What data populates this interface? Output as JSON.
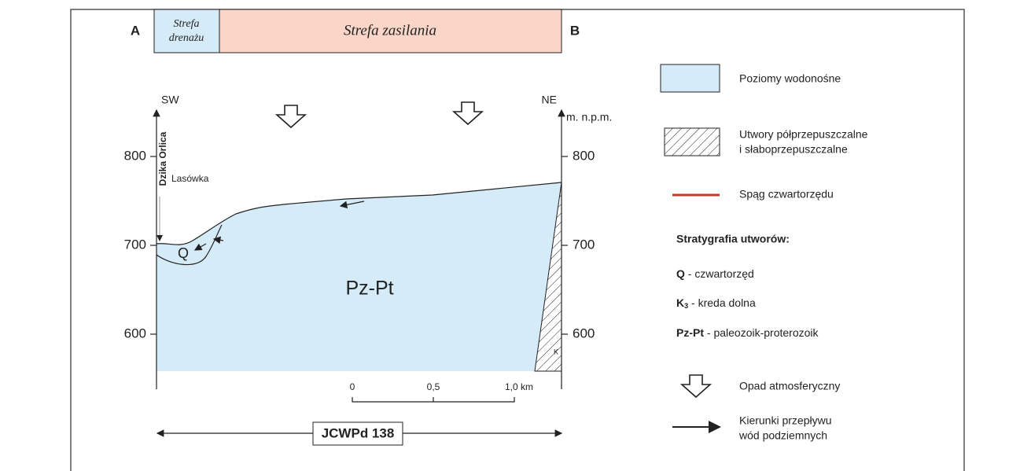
{
  "header": {
    "left_marker": "A",
    "right_marker": "B",
    "zone_drainage": [
      "Strefa",
      "drenażu"
    ],
    "zone_recharge": "Strefa zasilania"
  },
  "section": {
    "left_direction": "SW",
    "right_direction": "NE",
    "unit": "m. n.p.m.",
    "left_ticks": [
      "800",
      "700",
      "600"
    ],
    "right_ticks": [
      "800",
      "700",
      "600"
    ],
    "river": "Dzika Orlica",
    "stream": "Lasówka",
    "unit_q": "Q",
    "unit_pzpt": "Pz-Pt",
    "unit_k": "K"
  },
  "scale": {
    "labels": [
      "0",
      "0,5",
      "1,0 km"
    ]
  },
  "groundwater_body": "JCWPd 138",
  "legend": {
    "aquifers": "Poziomy wodonośne",
    "semi_permeable": [
      "Utwory półprzepuszczalne",
      "i słaboprzepuszczalne"
    ],
    "quaternary_base": "Spąg czwartorzędu",
    "stratigraphy_title": "Stratygrafia utworów:",
    "units": [
      {
        "code": "Q",
        "text": " - czwartorzęd"
      },
      {
        "code": "K",
        "sub": "3",
        "text": " - kreda dolna"
      },
      {
        "code": "Pz-Pt",
        "text": " - paleozoik-proterozoik"
      }
    ],
    "precipitation": "Opad atmosferyczny",
    "flow": [
      "Kierunki przepływu",
      "wód podziemnych"
    ]
  }
}
